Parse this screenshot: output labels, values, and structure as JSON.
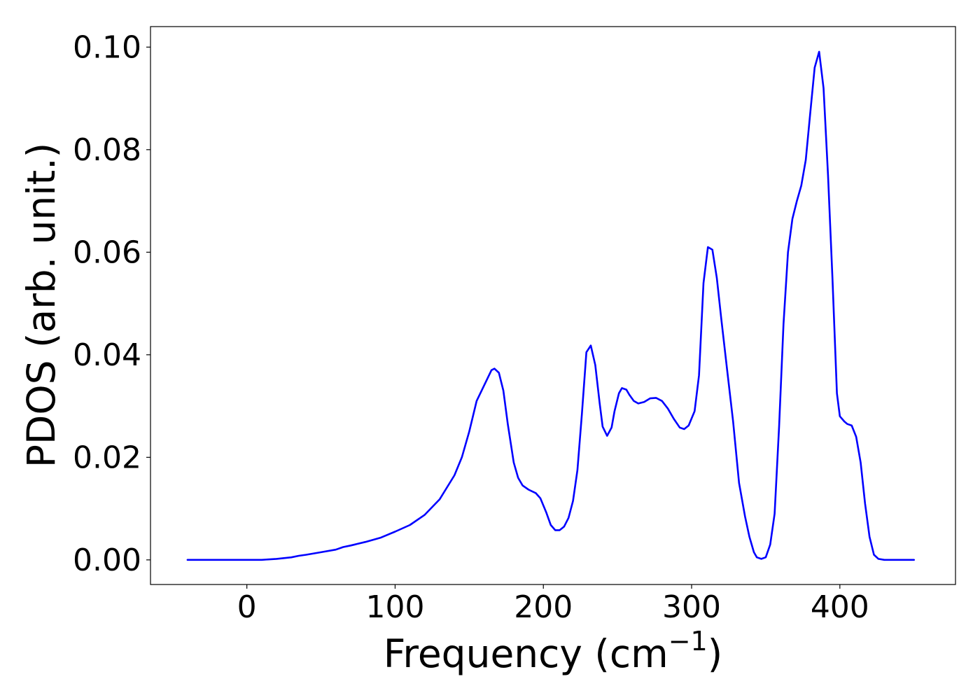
{
  "chart_data": {
    "type": "line",
    "title": "",
    "xlabel": "Frequency (cm",
    "xlabel_exponent": "−1",
    "xlabel_close": ")",
    "ylabel": "PDOS (arb. unit.)",
    "xlim": [
      -65,
      478
    ],
    "ylim": [
      -0.0048,
      0.104
    ],
    "xticks": [
      0,
      100,
      200,
      300,
      400
    ],
    "xtick_labels": [
      "0",
      "100",
      "200",
      "300",
      "400"
    ],
    "yticks": [
      0.0,
      0.02,
      0.04,
      0.06,
      0.08,
      0.1
    ],
    "ytick_labels": [
      "0.00",
      "0.02",
      "0.04",
      "0.06",
      "0.08",
      "0.10"
    ],
    "grid": false,
    "legend": "none",
    "series": [
      {
        "color": "#0000ff",
        "x": [
          -40,
          0,
          5,
          10,
          20,
          30,
          35,
          40,
          50,
          60,
          65,
          70,
          80,
          90,
          100,
          110,
          120,
          130,
          140,
          145,
          150,
          155,
          160,
          165,
          167,
          170,
          173,
          176,
          180,
          183,
          186,
          190,
          195,
          198,
          202,
          205,
          208,
          211,
          214,
          217,
          220,
          223,
          226,
          229,
          232,
          235,
          238,
          240,
          243,
          246,
          248,
          251,
          253,
          256,
          258,
          261,
          264,
          268,
          272,
          276,
          280,
          284,
          288,
          292,
          295,
          298,
          302,
          305,
          308,
          311,
          314,
          317,
          320,
          324,
          328,
          332,
          336,
          339,
          342,
          344,
          347,
          350,
          353,
          356,
          359,
          362,
          365,
          368,
          371,
          374,
          377,
          380,
          383,
          386,
          389,
          392,
          395,
          398,
          400,
          403,
          405,
          408,
          411,
          414,
          417,
          420,
          423,
          426,
          430,
          450
        ],
        "y": [
          0.0,
          0.0,
          0.0,
          0.0,
          0.0002,
          0.0005,
          0.0008,
          0.001,
          0.0015,
          0.002,
          0.0025,
          0.0028,
          0.0035,
          0.0043,
          0.0055,
          0.0068,
          0.0088,
          0.0118,
          0.0165,
          0.02,
          0.025,
          0.031,
          0.034,
          0.037,
          0.0373,
          0.0365,
          0.033,
          0.0265,
          0.019,
          0.016,
          0.0145,
          0.0137,
          0.013,
          0.012,
          0.0092,
          0.0068,
          0.0058,
          0.0058,
          0.0065,
          0.0082,
          0.0115,
          0.0175,
          0.0285,
          0.0405,
          0.0418,
          0.038,
          0.0305,
          0.026,
          0.0242,
          0.0258,
          0.029,
          0.0325,
          0.0335,
          0.0332,
          0.0322,
          0.031,
          0.0305,
          0.0308,
          0.0315,
          0.0316,
          0.031,
          0.0295,
          0.0275,
          0.0258,
          0.0255,
          0.0262,
          0.029,
          0.036,
          0.054,
          0.061,
          0.0605,
          0.055,
          0.047,
          0.037,
          0.027,
          0.015,
          0.0085,
          0.0045,
          0.0015,
          0.0005,
          0.0002,
          0.0005,
          0.003,
          0.009,
          0.026,
          0.046,
          0.06,
          0.0665,
          0.07,
          0.073,
          0.078,
          0.087,
          0.096,
          0.0991,
          0.092,
          0.075,
          0.055,
          0.0325,
          0.028,
          0.027,
          0.0265,
          0.0262,
          0.024,
          0.019,
          0.011,
          0.0045,
          0.001,
          0.0002,
          0.0,
          0.0
        ]
      }
    ]
  }
}
